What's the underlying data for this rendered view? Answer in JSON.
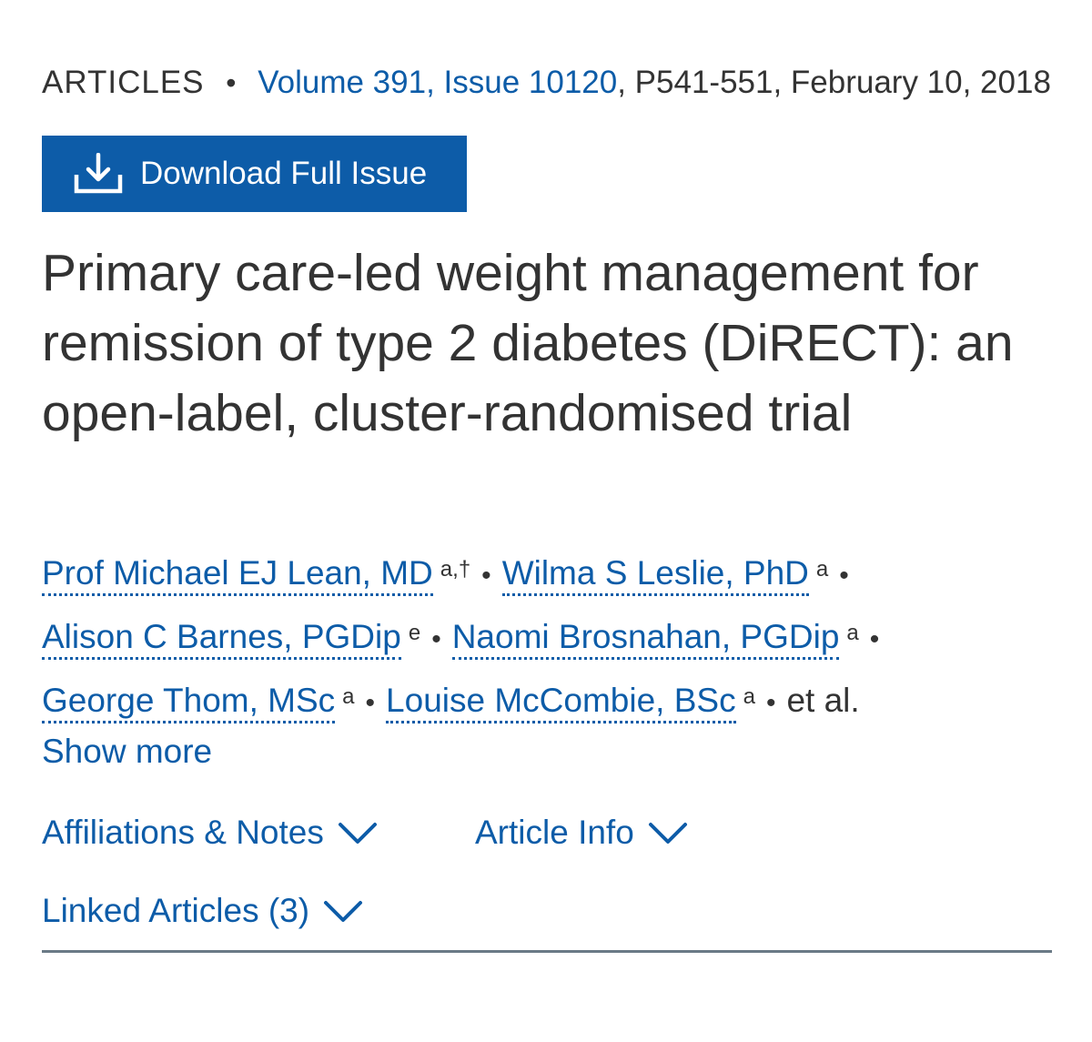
{
  "header": {
    "section": "ARTICLES",
    "separator": "•",
    "issue_link": "Volume 391, Issue 10120",
    "pages_date": ", P541-551, February 10, 2018"
  },
  "download_button": {
    "label": "Download Full Issue",
    "icon": "download-icon"
  },
  "article": {
    "title": "Primary care-led weight management for remission of type 2 diabetes (DiRECT): an open-label, cluster-randomised trial"
  },
  "authors": [
    {
      "name": "Prof Michael EJ Lean, MD",
      "sup": "a,†"
    },
    {
      "name": "Wilma S Leslie, PhD",
      "sup": "a"
    },
    {
      "name": "Alison C Barnes, PGDip",
      "sup": "e"
    },
    {
      "name": "Naomi Brosnahan, PGDip",
      "sup": "a"
    },
    {
      "name": "George Thom, MSc",
      "sup": "a"
    },
    {
      "name": "Louise McCombie, BSc",
      "sup": "a"
    }
  ],
  "author_separator": "•",
  "et_al": "et al.",
  "show_more": "Show more",
  "toggles": {
    "affiliations": "Affiliations & Notes",
    "article_info": "Article Info",
    "linked_articles": "Linked Articles (3)",
    "icon": "chevron-down-icon"
  },
  "colors": {
    "link": "#0d5ca8",
    "text": "#333333",
    "button_bg": "#0d5ca8",
    "rule": "#6a7a86"
  }
}
